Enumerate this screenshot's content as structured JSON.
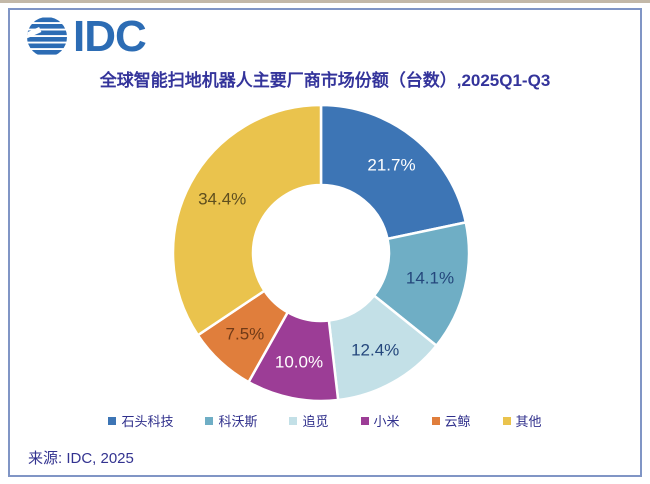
{
  "page": {
    "logo_text": "IDC",
    "source_text": "来源: IDC, 2025",
    "border_color": "#8095c5",
    "logo_color": "#2c6cb4",
    "title_color": "#34349b"
  },
  "chart_data": {
    "type": "pie",
    "donut": true,
    "title": "全球智能扫地机器人主要厂商市场份额（台数）,2025Q1-Q3",
    "start_angle_deg": 0,
    "direction": "clockwise",
    "legend_position": "bottom",
    "series": [
      {
        "name": "石头科技",
        "value": 21.7,
        "label": "21.7%",
        "color": "#3d75b5",
        "label_color": "#ffffff"
      },
      {
        "name": "科沃斯",
        "value": 14.1,
        "label": "14.1%",
        "color": "#6faec5",
        "label_color": "#24477c"
      },
      {
        "name": "追觅",
        "value": 12.4,
        "label": "12.4%",
        "color": "#c3e0e7",
        "label_color": "#24477c"
      },
      {
        "name": "小米",
        "value": 10.0,
        "label": "10.0%",
        "color": "#9c3d96",
        "label_color": "#ffffff"
      },
      {
        "name": "云鲸",
        "value": 7.5,
        "label": "7.5%",
        "color": "#e07e3c",
        "label_color": "#703a17"
      },
      {
        "name": "其他",
        "value": 34.4,
        "label": "34.4%",
        "color": "#eac34d",
        "label_color": "#5f4f1f"
      }
    ]
  }
}
